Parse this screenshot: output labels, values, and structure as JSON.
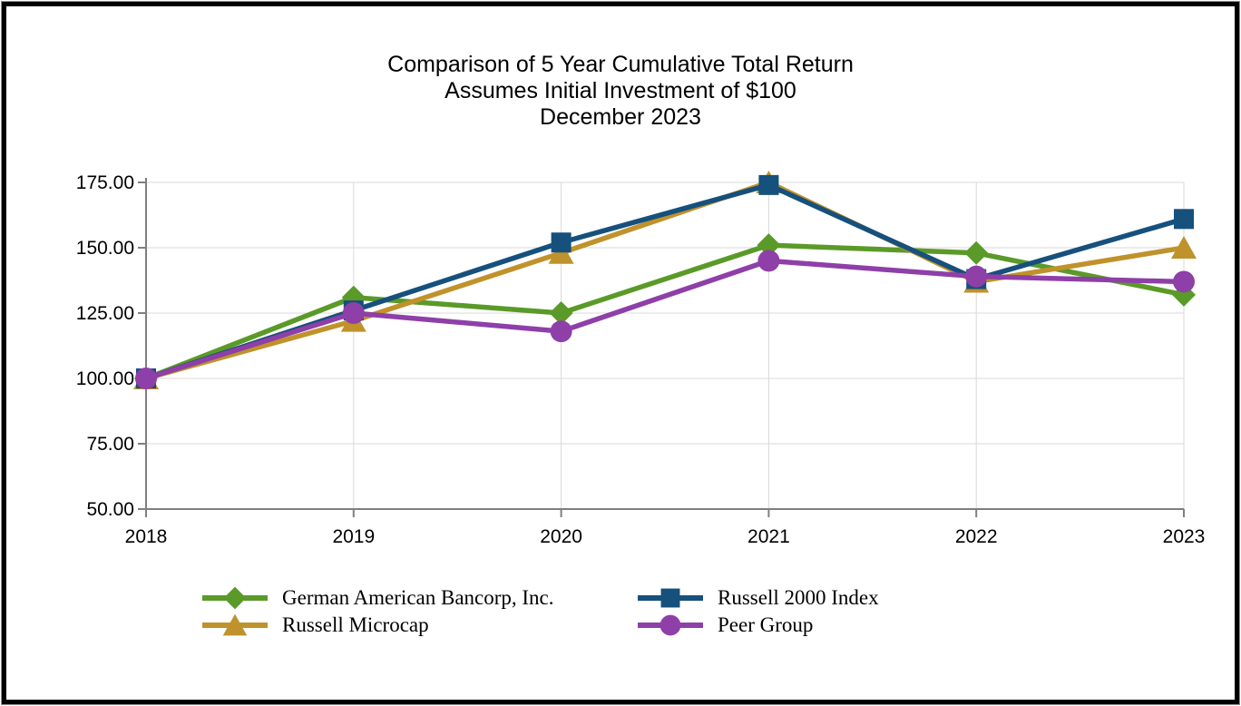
{
  "chart_data": {
    "type": "line",
    "title": "Comparison of 5 Year Cumulative Total Return",
    "subtitle": "Assumes Initial Investment of $100",
    "subtitle2": "December 2023",
    "xlabel": "",
    "ylabel": "",
    "categories": [
      "2018",
      "2019",
      "2020",
      "2021",
      "2022",
      "2023"
    ],
    "y_ticks": [
      "175.00",
      "150.00",
      "125.00",
      "100.00",
      "75.00",
      "50.00"
    ],
    "ylim": [
      50,
      175
    ],
    "grid": true,
    "legend_position": "bottom",
    "axis_color": "#7f7f7f",
    "gridline_color": "#d9d9d9",
    "text_color": "#000000",
    "series": [
      {
        "name": "German American Bancorp, Inc.",
        "marker": "diamond",
        "color": "#5a9a28",
        "values": [
          100,
          131,
          125,
          151,
          148,
          132
        ]
      },
      {
        "name": "Russell Microcap",
        "marker": "triangle",
        "color": "#c0922b",
        "values": [
          100,
          122,
          148,
          175,
          137,
          150
        ]
      },
      {
        "name": "Russell 2000 Index",
        "marker": "square",
        "color": "#16507c",
        "values": [
          100,
          126,
          152,
          174,
          138,
          161
        ]
      },
      {
        "name": "Peer Group",
        "marker": "circle",
        "color": "#8e3fa8",
        "values": [
          100,
          125,
          118,
          145,
          139,
          137
        ]
      }
    ],
    "legend_order": [
      0,
      2,
      1,
      3
    ]
  }
}
